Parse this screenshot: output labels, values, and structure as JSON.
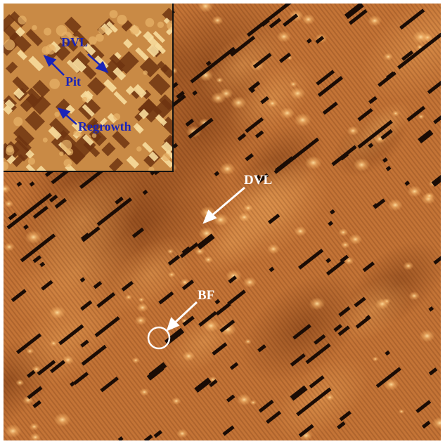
{
  "figure": {
    "annotations_main": {
      "dvl": "DVL",
      "bf": "BF"
    },
    "annotations_inset": {
      "dvl": "DVL",
      "pit": "Pit",
      "regrowth": "Regrowth"
    },
    "colors": {
      "surface_base": "#c47436",
      "surface_light": "#f2b368",
      "vacancy_dark": "#1a0c05",
      "main_annotation": "#ffffff",
      "inset_annotation": "#1a24b8",
      "inset_border": "#111111"
    }
  }
}
